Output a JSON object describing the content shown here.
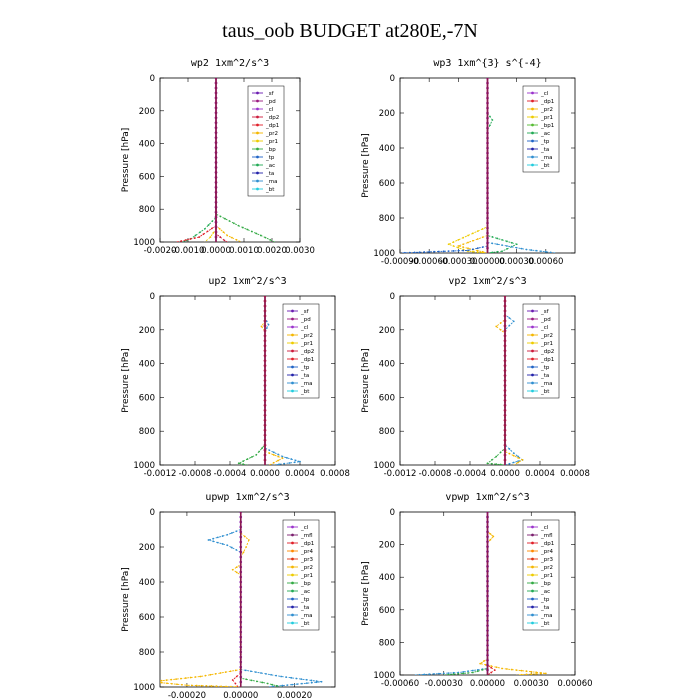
{
  "title": "taus_oob  BUDGET at280E,-7N",
  "colors": {
    "sf": "#6a1bb0",
    "pd": "#9b1b80",
    "cl": "#9a33cc",
    "dp2": "#cc1a3c",
    "dp1": "#e0202a",
    "pr2": "#f5b700",
    "pr1": "#eecc00",
    "bp": "#33aa44",
    "tp": "#1f63c6",
    "ac": "#22aa55",
    "ta": "#2222aa",
    "ma": "#2f8fd0",
    "bt": "#22ccdd",
    "mfl": "#7b1f6e",
    "pr4": "#ff8800",
    "pr3": "#dd3311",
    "bp1": "#55bb33"
  },
  "chart_data": [
    {
      "type": "line",
      "title": "wp2  1xm^2/s^3",
      "ylabel": "Pressure [hPa]",
      "ylim": [
        1000,
        0
      ],
      "yticks": [
        0,
        200,
        400,
        600,
        800,
        1000
      ],
      "xlim": [
        -0.002,
        0.003
      ],
      "xticks": [
        "-0.0020",
        "-0.0010",
        "0.0000",
        "0.0010",
        "0.0020",
        "0.0030"
      ],
      "legend": [
        "_sf",
        "_pd",
        "_cl",
        "_dp2",
        "_dp1",
        "_pr2",
        "_pr1",
        "_bp",
        "_tp",
        "_ac",
        "_ta",
        "_ma",
        "_bt"
      ],
      "legend_keys": [
        "sf",
        "pd",
        "cl",
        "dp2",
        "dp1",
        "pr2",
        "pr1",
        "bp",
        "tp",
        "ac",
        "ta",
        "ma",
        "bt"
      ],
      "legend_position": "top-right",
      "series": [
        {
          "key": "pr2",
          "points": [
            [
              0,
              0
            ],
            [
              0,
              900
            ],
            [
              0.0004,
              960
            ],
            [
              0.0009,
              1000
            ]
          ]
        },
        {
          "key": "pr1",
          "points": [
            [
              0,
              0
            ],
            [
              0,
              920
            ],
            [
              -0.0002,
              970
            ],
            [
              -0.0004,
              1000
            ]
          ]
        },
        {
          "key": "bp",
          "points": [
            [
              0,
              0
            ],
            [
              0,
              830
            ],
            [
              0.0008,
              900
            ],
            [
              0.0016,
              960
            ],
            [
              0.0021,
              1000
            ]
          ]
        },
        {
          "key": "ac",
          "points": [
            [
              0,
              0
            ],
            [
              0,
              850
            ],
            [
              -0.0004,
              920
            ],
            [
              -0.0009,
              980
            ],
            [
              -0.0012,
              1000
            ]
          ]
        },
        {
          "key": "dp1",
          "points": [
            [
              0,
              0
            ],
            [
              0,
              900
            ],
            [
              -0.0006,
              970
            ],
            [
              -0.0014,
              1000
            ]
          ]
        },
        {
          "key": "dp2",
          "points": [
            [
              0,
              0
            ],
            [
              0,
              950
            ],
            [
              0.0003,
              990
            ],
            [
              0.0004,
              1000
            ]
          ]
        },
        {
          "key": "cl",
          "points": [
            [
              0,
              0
            ],
            [
              0,
              1000
            ]
          ]
        },
        {
          "key": "pd",
          "points": [
            [
              0,
              0
            ],
            [
              0,
              1000
            ]
          ]
        }
      ]
    },
    {
      "type": "line",
      "title": "wp3  1xm^{3} s^{-4}",
      "ylabel": "Pressure [hPa]",
      "ylim": [
        1000,
        0
      ],
      "yticks": [
        0,
        200,
        400,
        600,
        800,
        1000
      ],
      "xlim": [
        -0.0009,
        0.0009
      ],
      "xticks": [
        "-0.00090",
        "-0.00060",
        "-0.00030",
        "0.00000",
        "0.00030",
        "0.00060"
      ],
      "legend": [
        "_cl",
        "_dp1",
        "_pr2",
        "_pr1",
        "_bp1",
        "_ac",
        "_tp",
        "_ta",
        "_ma",
        "_bt"
      ],
      "legend_keys": [
        "cl",
        "dp1",
        "pr2",
        "pr1",
        "bp1",
        "ac",
        "tp",
        "ta",
        "ma",
        "bt"
      ],
      "legend_position": "top-right",
      "series": [
        {
          "key": "pr1",
          "points": [
            [
              0,
              0
            ],
            [
              0,
              850
            ],
            [
              -0.0002,
              900
            ],
            [
              -0.0004,
              950
            ],
            [
              -0.0002,
              990
            ],
            [
              0,
              1000
            ]
          ]
        },
        {
          "key": "pr2",
          "points": [
            [
              0,
              0
            ],
            [
              0,
              900
            ],
            [
              -0.0003,
              960
            ],
            [
              0,
              1000
            ]
          ]
        },
        {
          "key": "ac",
          "points": [
            [
              0,
              0
            ],
            [
              0,
              200
            ],
            [
              5e-05,
              240
            ],
            [
              0,
              300
            ],
            [
              0,
              900
            ],
            [
              0.0003,
              950
            ],
            [
              0.00015,
              990
            ],
            [
              0,
              1000
            ]
          ]
        },
        {
          "key": "tp",
          "points": [
            [
              0,
              0
            ],
            [
              0,
              960
            ],
            [
              -0.0002,
              985
            ],
            [
              -0.0009,
              1000
            ]
          ]
        },
        {
          "key": "ma",
          "points": [
            [
              0,
              0
            ],
            [
              0,
              940
            ],
            [
              0.0004,
              980
            ],
            [
              0.0007,
              1000
            ]
          ]
        },
        {
          "key": "dp1",
          "points": [
            [
              0,
              0
            ],
            [
              0,
              1000
            ]
          ]
        },
        {
          "key": "cl",
          "points": [
            [
              0,
              0
            ],
            [
              0,
              1000
            ]
          ]
        }
      ]
    },
    {
      "type": "line",
      "title": "up2  1xm^2/s^3",
      "ylabel": "Pressure [hPa]",
      "ylim": [
        1000,
        0
      ],
      "yticks": [
        0,
        200,
        400,
        600,
        800,
        1000
      ],
      "xlim": [
        -0.0012,
        0.0008
      ],
      "xticks": [
        "-0.0012",
        "-0.0008",
        "-0.0004",
        "0.0000",
        "0.0004",
        "0.0008"
      ],
      "legend": [
        "_sf",
        "_pd",
        "_cl",
        "_pr2",
        "_pr1",
        "_dp2",
        "_dp1",
        "_tp",
        "_ta",
        "_ma",
        "_bt"
      ],
      "legend_keys": [
        "sf",
        "pd",
        "cl",
        "pr2",
        "pr1",
        "dp2",
        "dp1",
        "tp",
        "ta",
        "ma",
        "bt"
      ],
      "legend_position": "top-right",
      "series": [
        {
          "key": "ma",
          "points": [
            [
              0,
              0
            ],
            [
              0,
              130
            ],
            [
              4e-05,
              170
            ],
            [
              0,
              210
            ],
            [
              0,
              900
            ],
            [
              0.0002,
              950
            ],
            [
              0.0004,
              980
            ],
            [
              0.0001,
              1000
            ]
          ]
        },
        {
          "key": "pr2",
          "points": [
            [
              0,
              0
            ],
            [
              0,
              150
            ],
            [
              -4e-05,
              180
            ],
            [
              0,
              210
            ],
            [
              0,
              920
            ],
            [
              0.0002,
              960
            ],
            [
              5e-05,
              1000
            ]
          ]
        },
        {
          "key": "bp",
          "points": [
            [
              0,
              0
            ],
            [
              0,
              880
            ],
            [
              -0.0001,
              940
            ],
            [
              -0.0003,
              990
            ],
            [
              -0.0002,
              1000
            ]
          ]
        },
        {
          "key": "cl",
          "points": [
            [
              0,
              0
            ],
            [
              0,
              1000
            ]
          ]
        },
        {
          "key": "dp1",
          "points": [
            [
              0,
              0
            ],
            [
              0,
              1000
            ]
          ]
        }
      ]
    },
    {
      "type": "line",
      "title": "vp2  1xm^2/s^3",
      "ylabel": "Pressure [hPa]",
      "ylim": [
        1000,
        0
      ],
      "yticks": [
        0,
        200,
        400,
        600,
        800,
        1000
      ],
      "xlim": [
        -0.0012,
        0.0008
      ],
      "xticks": [
        "-0.0012",
        "-0.0008",
        "-0.0004",
        "0.0000",
        "0.0004",
        "0.0008"
      ],
      "legend": [
        "_sf",
        "_pd",
        "_cl",
        "_pr2",
        "_pr1",
        "_dp2",
        "_dp1",
        "_tp",
        "_ta",
        "_ma",
        "_bt"
      ],
      "legend_keys": [
        "sf",
        "pd",
        "cl",
        "pr2",
        "pr1",
        "dp2",
        "dp1",
        "tp",
        "ta",
        "ma",
        "bt"
      ],
      "legend_position": "top-right",
      "series": [
        {
          "key": "ma",
          "points": [
            [
              0,
              0
            ],
            [
              0,
              110
            ],
            [
              0.0001,
              150
            ],
            [
              0,
              200
            ],
            [
              0,
              880
            ],
            [
              0.0001,
              930
            ],
            [
              0.0002,
              970
            ],
            [
              0,
              1000
            ]
          ]
        },
        {
          "key": "pr2",
          "points": [
            [
              0,
              0
            ],
            [
              0,
              140
            ],
            [
              -0.0001,
              180
            ],
            [
              0,
              220
            ],
            [
              0,
              920
            ],
            [
              0.0002,
              970
            ],
            [
              0.0001,
              1000
            ]
          ]
        },
        {
          "key": "bp",
          "points": [
            [
              0,
              0
            ],
            [
              0,
              900
            ],
            [
              -0.0001,
              950
            ],
            [
              -0.0002,
              990
            ],
            [
              0,
              1000
            ]
          ]
        },
        {
          "key": "cl",
          "points": [
            [
              0,
              0
            ],
            [
              0,
              1000
            ]
          ]
        },
        {
          "key": "dp1",
          "points": [
            [
              0,
              0
            ],
            [
              0,
              1000
            ]
          ]
        }
      ]
    },
    {
      "type": "line",
      "title": "upwp  1xm^2/s^3",
      "ylabel": "Pressure [hPa]",
      "ylim": [
        1000,
        0
      ],
      "yticks": [
        0,
        200,
        400,
        600,
        800,
        1000
      ],
      "xlim": [
        -0.0003,
        0.00035
      ],
      "xticks": [
        "-0.00020",
        "0.00000",
        "0.00020"
      ],
      "legend": [
        "_cl",
        "_mfl",
        "_dp1",
        "_pr4",
        "_pr3",
        "_pr2",
        "_pr1",
        "_bp",
        "_ac",
        "_tp",
        "_ta",
        "_ma",
        "_bt"
      ],
      "legend_keys": [
        "cl",
        "mfl",
        "dp1",
        "pr4",
        "pr3",
        "pr2",
        "pr1",
        "bp",
        "ac",
        "tp",
        "ta",
        "ma",
        "bt"
      ],
      "legend_position": "top-right",
      "series": [
        {
          "key": "ma",
          "points": [
            [
              0,
              0
            ],
            [
              0,
              100
            ],
            [
              -5e-05,
              130
            ],
            [
              -0.00012,
              160
            ],
            [
              -5e-05,
              190
            ],
            [
              0,
              230
            ],
            [
              0,
              900
            ],
            [
              0.00015,
              940
            ],
            [
              0.0003,
              970
            ],
            [
              0.0001,
              1000
            ]
          ]
        },
        {
          "key": "pr2",
          "points": [
            [
              0,
              0
            ],
            [
              0,
              120
            ],
            [
              3e-05,
              160
            ],
            [
              2e-05,
              200
            ],
            [
              0,
              260
            ],
            [
              0,
              300
            ],
            [
              -3e-05,
              330
            ],
            [
              0,
              360
            ],
            [
              0,
              900
            ],
            [
              -0.00015,
              940
            ],
            [
              -0.00033,
              970
            ],
            [
              -0.0002,
              990
            ],
            [
              0,
              1000
            ]
          ]
        },
        {
          "key": "bp",
          "points": [
            [
              0,
              0
            ],
            [
              0,
              950
            ],
            [
              0.0001,
              980
            ],
            [
              0.00015,
              1000
            ]
          ]
        },
        {
          "key": "dp1",
          "points": [
            [
              0,
              0
            ],
            [
              0,
              920
            ],
            [
              -3e-05,
              960
            ],
            [
              -1e-05,
              1000
            ]
          ]
        },
        {
          "key": "mfl",
          "points": [
            [
              0,
              0
            ],
            [
              0,
              1000
            ]
          ]
        },
        {
          "key": "cl",
          "points": [
            [
              0,
              0
            ],
            [
              0,
              1000
            ]
          ]
        }
      ]
    },
    {
      "type": "line",
      "title": "vpwp  1xm^2/s^3",
      "ylabel": "Pressure [hPa]",
      "ylim": [
        1000,
        0
      ],
      "yticks": [
        0,
        200,
        400,
        600,
        800,
        1000
      ],
      "xlim": [
        -0.0006,
        0.0006
      ],
      "xticks": [
        "-0.00060",
        "-0.00030",
        "0.00000",
        "0.00030",
        "0.00060"
      ],
      "legend": [
        "_cl",
        "_mfl",
        "_dp1",
        "_pr4",
        "_pr3",
        "_pr2",
        "_pr1",
        "_bp",
        "_ac",
        "_tp",
        "_ta",
        "_ma",
        "_bt"
      ],
      "legend_keys": [
        "cl",
        "mfl",
        "dp1",
        "pr4",
        "pr3",
        "pr2",
        "pr1",
        "bp",
        "ac",
        "tp",
        "ta",
        "ma",
        "bt"
      ],
      "legend_position": "top-right",
      "series": [
        {
          "key": "pr2",
          "points": [
            [
              0,
              0
            ],
            [
              0,
              120
            ],
            [
              4e-05,
              150
            ],
            [
              0,
              190
            ],
            [
              0,
              900
            ],
            [
              -5e-05,
              930
            ],
            [
              0.0001,
              960
            ],
            [
              0.0004,
              990
            ],
            [
              0.0002,
              1000
            ]
          ]
        },
        {
          "key": "ma",
          "points": [
            [
              0,
              0
            ],
            [
              0,
              960
            ],
            [
              -0.0002,
              985
            ],
            [
              -0.0005,
              1000
            ]
          ]
        },
        {
          "key": "bp",
          "points": [
            [
              0,
              0
            ],
            [
              0,
              960
            ],
            [
              -0.0001,
              985
            ],
            [
              -0.0003,
              1000
            ]
          ]
        },
        {
          "key": "dp1",
          "points": [
            [
              0,
              0
            ],
            [
              0,
              940
            ],
            [
              5e-05,
              970
            ],
            [
              0,
              1000
            ]
          ]
        },
        {
          "key": "mfl",
          "points": [
            [
              0,
              0
            ],
            [
              0,
              1000
            ]
          ]
        },
        {
          "key": "cl",
          "points": [
            [
              0,
              0
            ],
            [
              0,
              1000
            ]
          ]
        }
      ]
    }
  ]
}
